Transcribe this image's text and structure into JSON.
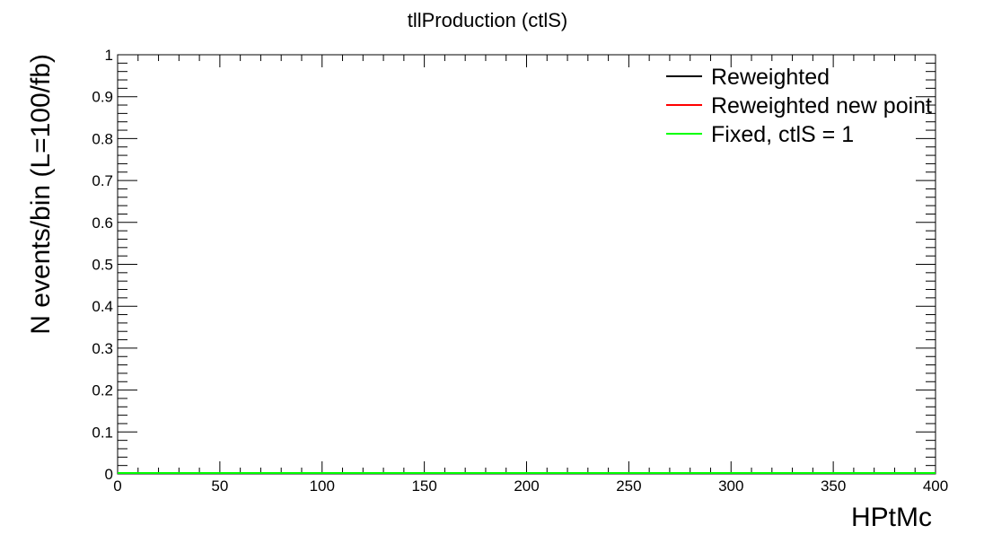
{
  "chart_data": {
    "type": "line",
    "title": "tllProduction (ctlS)",
    "xlabel": "HPtMc",
    "ylabel": "N events/bin (L=100/fb)",
    "xlim": [
      0,
      400
    ],
    "ylim": [
      0,
      1
    ],
    "x_ticks": [
      "0",
      "50",
      "100",
      "150",
      "200",
      "250",
      "300",
      "350",
      "400"
    ],
    "y_ticks": [
      "0",
      "0.1",
      "0.2",
      "0.3",
      "0.4",
      "0.5",
      "0.6",
      "0.7",
      "0.8",
      "0.9",
      "1"
    ],
    "legend_position": "top-right",
    "grid": false,
    "series": [
      {
        "name": "Reweighted",
        "color": "#000000",
        "x": [
          0,
          400
        ],
        "values": [
          0,
          0
        ]
      },
      {
        "name": "Reweighted new point",
        "color": "#ff0000",
        "x": [
          0,
          400
        ],
        "values": [
          0,
          0
        ]
      },
      {
        "name": "Fixed, ctlS = 1",
        "color": "#00ff00",
        "x": [
          0,
          400
        ],
        "values": [
          0,
          0
        ]
      }
    ]
  }
}
